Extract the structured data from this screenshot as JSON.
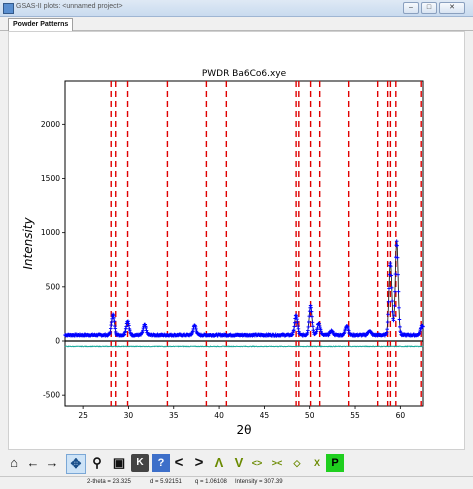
{
  "window": {
    "title": "GSAS-II plots: <unnamed project>"
  },
  "tabs": [
    {
      "label": "Powder Patterns"
    }
  ],
  "chart_data": {
    "type": "scatter",
    "title": "PWDR Ba6Co6.xye",
    "xlabel": "2θ",
    "ylabel": "Intensity",
    "xlim": [
      23.0,
      62.5
    ],
    "ylim": [
      -600,
      2400
    ],
    "xticks": [
      25,
      30,
      35,
      40,
      45,
      50,
      55,
      60
    ],
    "yticks": [
      -500,
      0,
      500,
      1000,
      1500,
      2000
    ],
    "observed_color": "#0000ff",
    "calculated_color": "#1f1f1f",
    "difference_color": "#17a89a",
    "reflection_color": "#e00000",
    "difference_offset": -50,
    "background": 55,
    "peaks": [
      {
        "x": 28.3,
        "height": 190
      },
      {
        "x": 29.9,
        "height": 130
      },
      {
        "x": 31.8,
        "height": 95
      },
      {
        "x": 37.3,
        "height": 90
      },
      {
        "x": 48.5,
        "height": 180
      },
      {
        "x": 50.1,
        "height": 270
      },
      {
        "x": 51.0,
        "height": 110
      },
      {
        "x": 52.4,
        "height": 40
      },
      {
        "x": 54.1,
        "height": 90
      },
      {
        "x": 56.6,
        "height": 40
      },
      {
        "x": 58.9,
        "height": 670
      },
      {
        "x": 59.6,
        "height": 870
      },
      {
        "x": 62.4,
        "height": 90
      }
    ],
    "reflections": [
      28.1,
      28.6,
      29.9,
      34.3,
      38.6,
      40.8,
      48.5,
      48.8,
      50.1,
      51.1,
      54.3,
      57.5,
      58.6,
      58.9,
      59.5,
      62.3
    ]
  },
  "toolbar": {
    "buttons": [
      {
        "name": "home-button",
        "glyph": "⌂"
      },
      {
        "name": "back-button",
        "glyph": "←"
      },
      {
        "name": "forward-button",
        "glyph": "→"
      },
      {
        "name": "pan-button",
        "glyph": "✥"
      },
      {
        "name": "zoom-button",
        "glyph": "⚲"
      },
      {
        "name": "save-button",
        "glyph": "▣"
      },
      {
        "name": "key-button",
        "glyph": "K"
      },
      {
        "name": "help-button",
        "glyph": "?"
      },
      {
        "name": "shift-left-button",
        "glyph": "<"
      },
      {
        "name": "shift-right-button",
        "glyph": ">"
      },
      {
        "name": "shift-up-button",
        "glyph": "Λ"
      },
      {
        "name": "shift-down-button",
        "glyph": "V"
      },
      {
        "name": "expand-x-button",
        "glyph": "<>"
      },
      {
        "name": "shrink-x-button",
        "glyph": "><"
      },
      {
        "name": "expand-y-button",
        "glyph": "◇"
      },
      {
        "name": "shrink-y-button",
        "glyph": "X"
      },
      {
        "name": "publish-button",
        "glyph": "P"
      }
    ]
  },
  "status": {
    "two_theta": "2-theta = 23.325",
    "d": "d = 5.92151",
    "q": "q = 1.06108",
    "intensity": "Intensity = 307.39"
  }
}
